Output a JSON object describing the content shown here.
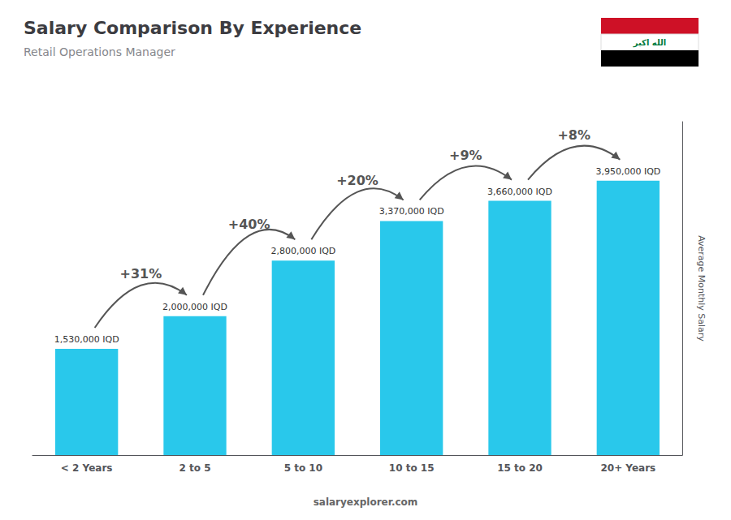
{
  "chart_data": {
    "type": "bar",
    "title": "Salary Comparison By Experience",
    "subtitle": "Retail Operations Manager",
    "categories": [
      "< 2 Years",
      "2 to 5",
      "5 to 10",
      "10 to 15",
      "15 to 20",
      "20+ Years"
    ],
    "values": [
      1530000,
      2000000,
      2800000,
      3370000,
      3660000,
      3950000
    ],
    "value_labels": [
      "1,530,000 IQD",
      "2,000,000 IQD",
      "2,800,000 IQD",
      "3,370,000 IQD",
      "3,660,000 IQD",
      "3,950,000 IQD"
    ],
    "data_labels": true,
    "annotations": [
      "+31%",
      "+40%",
      "+20%",
      "+9%",
      "+8%"
    ],
    "ylabel": "Average Monthly Salary",
    "ylim": [
      0,
      4800000
    ],
    "tick_labels": "x",
    "grid": false,
    "color": "#29c8eb",
    "footer": "salaryexplorer.com",
    "flag_text": "الله اكبر"
  }
}
